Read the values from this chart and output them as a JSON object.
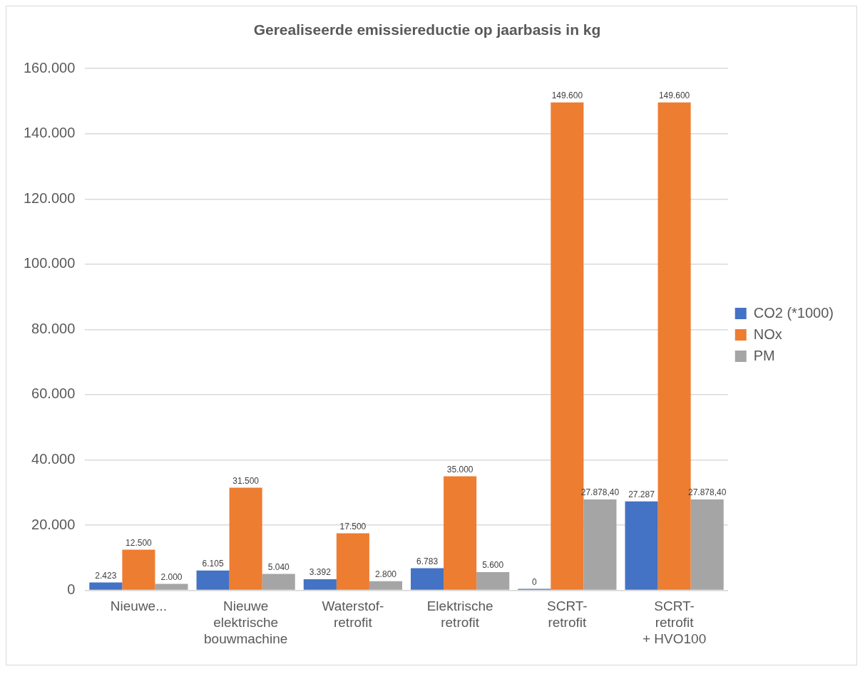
{
  "chart_data": {
    "type": "bar",
    "title": "Gerealiseerde emissiereductie op jaarbasis in kg",
    "categories": [
      "Nieuwe...",
      "Nieuwe elektrische bouwmachine",
      "Waterstof-retrofit",
      "Elektrische retrofit",
      "SCRT-retrofit",
      "SCRT-retrofit + HVO100"
    ],
    "series": [
      {
        "name": "CO2 (*1000)",
        "color": "#4472c4",
        "values": [
          2423,
          6105,
          3392,
          6783,
          0,
          27287
        ],
        "value_labels": [
          "2.423",
          "6.105",
          "3.392",
          "6.783",
          "0",
          "27.287"
        ]
      },
      {
        "name": "NOx",
        "color": "#ed7d31",
        "values": [
          12500,
          31500,
          17500,
          35000,
          149600,
          149600
        ],
        "value_labels": [
          "12.500",
          "31.500",
          "17.500",
          "35.000",
          "149.600",
          "149.600"
        ]
      },
      {
        "name": "PM",
        "color": "#a5a5a5",
        "values": [
          2000,
          5040,
          2800,
          5600,
          27878.4,
          27878.4
        ],
        "value_labels": [
          "2.000",
          "5.040",
          "2.800",
          "5.600",
          "27.878,40",
          "27.878,40"
        ]
      }
    ],
    "ylim": [
      0,
      160000
    ],
    "yticks": [
      {
        "value": 0,
        "label": "0"
      },
      {
        "value": 20000,
        "label": "20.000"
      },
      {
        "value": 40000,
        "label": "40.000"
      },
      {
        "value": 60000,
        "label": "60.000"
      },
      {
        "value": 80000,
        "label": "80.000"
      },
      {
        "value": 100000,
        "label": "100.000"
      },
      {
        "value": 120000,
        "label": "120.000"
      },
      {
        "value": 140000,
        "label": "140.000"
      },
      {
        "value": 160000,
        "label": "160.000"
      }
    ],
    "grid": "y",
    "legend": "right"
  }
}
